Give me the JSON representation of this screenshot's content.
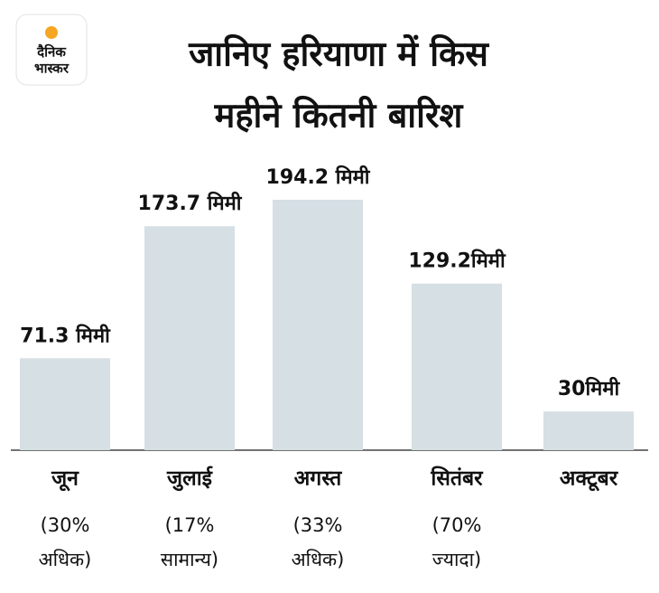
{
  "logo": [
    "दैनिक",
    "भास्कर"
  ],
  "chart_data": {
    "type": "bar",
    "title": [
      "जानिए हरियाणा में किस",
      "महीने कितनी बारिश"
    ],
    "categories": [
      "जून",
      "जुलाई",
      "अगस्त",
      "सितंबर",
      "अक्टूबर"
    ],
    "values": [
      71.3,
      173.7,
      194.2,
      129.2,
      30
    ],
    "value_labels": [
      "71.3 मिमी",
      "173.7 मिमी",
      "194.2 मिमी",
      "129.2मिमी",
      "30मिमी"
    ],
    "category_notes": [
      [
        "(30%",
        "अधिक)"
      ],
      [
        "(17%",
        "सामान्य)"
      ],
      [
        "(33%",
        "अधिक)"
      ],
      [
        "(70%",
        "ज्यादा)"
      ],
      null
    ],
    "color": "#d5dfe4"
  }
}
